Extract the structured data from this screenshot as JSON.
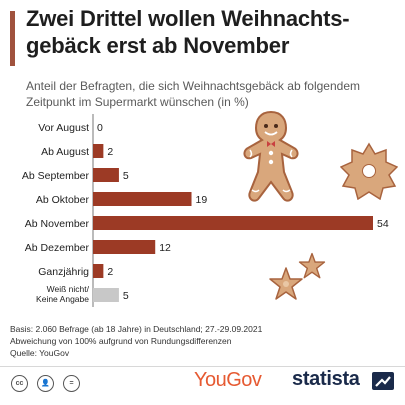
{
  "header": {
    "title": "Zwei Drittel wollen Weihnachts-gebäck erst ab November",
    "subtitle": "Anteil der Befragten, die sich Weihnachtsgebäck ab folgendem Zeitpunkt im Supermarkt wünschen (in %)"
  },
  "chart_data": {
    "type": "bar",
    "orientation": "horizontal",
    "categories": [
      "Vor August",
      "Ab August",
      "Ab September",
      "Ab Oktober",
      "Ab November",
      "Ab Dezember",
      "Ganzjährig",
      "Weiß nicht/\nKeine Angabe"
    ],
    "values": [
      0,
      2,
      5,
      19,
      54,
      12,
      2,
      5
    ],
    "bar_colors": [
      "#9c3a25",
      "#9c3a25",
      "#9c3a25",
      "#9c3a25",
      "#9c3a25",
      "#9c3a25",
      "#9c3a25",
      "#c8c8c8"
    ],
    "xlim": [
      0,
      54
    ],
    "grid": false,
    "legend": "none"
  },
  "footer": {
    "source_line1": "Basis: 2.060 Befrage (ab 18 Jahre) in Deutschland; 27.-29.09.2021",
    "source_line2": "Abweichung von 100% aufgrund von Rundungsdifferenzen",
    "source_line3": "Quelle: YouGov"
  },
  "brand": {
    "partner": "YouGov",
    "logo": "statista"
  },
  "license_icons": [
    "cc-icon",
    "by-icon",
    "equals-icon"
  ],
  "colors": {
    "accent": "#9c3a25",
    "neutral_bar": "#c8c8c8",
    "title_bar": "#a0523d",
    "cookie": "#d9a77c",
    "cookie_outline": "#a8633e",
    "yougov": "#e65a32",
    "statista": "#1a2a4a"
  }
}
